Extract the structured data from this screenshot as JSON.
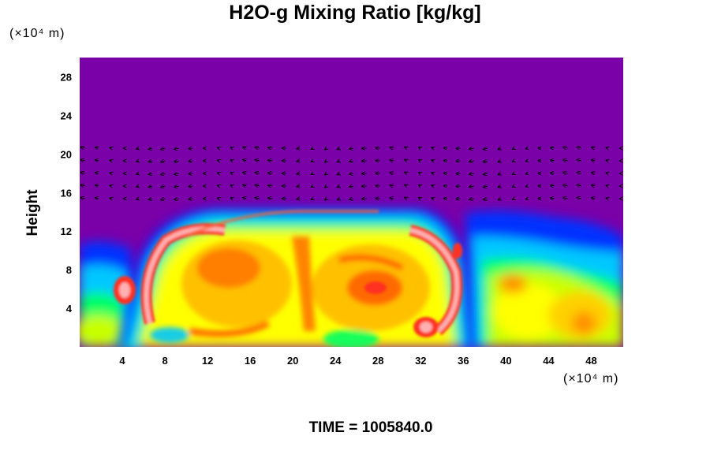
{
  "chart_data": {
    "type": "heatmap",
    "title": "H2O-g Mixing Ratio [kg/kg]",
    "ylabel": "Height",
    "xlabel": "",
    "x_unit_label": "(×10⁴ m)",
    "y_unit_label": "(×10⁴ m)",
    "xlim": [
      0,
      51
    ],
    "ylim": [
      0,
      30
    ],
    "x_ticks": [
      4,
      8,
      12,
      16,
      20,
      24,
      28,
      32,
      36,
      40,
      44,
      48
    ],
    "y_ticks": [
      4,
      8,
      12,
      16,
      20,
      24,
      28
    ],
    "colormap": [
      "#7a00a8",
      "#0000ff",
      "#00c8ff",
      "#00ff64",
      "#ffff00",
      "#ff9000",
      "#ff2000",
      "#ffb0b0"
    ],
    "background_value_color": "#7a00a8",
    "moist_layer_top": 14,
    "vector_field": true,
    "footer": "TIME = 1005840.0"
  }
}
